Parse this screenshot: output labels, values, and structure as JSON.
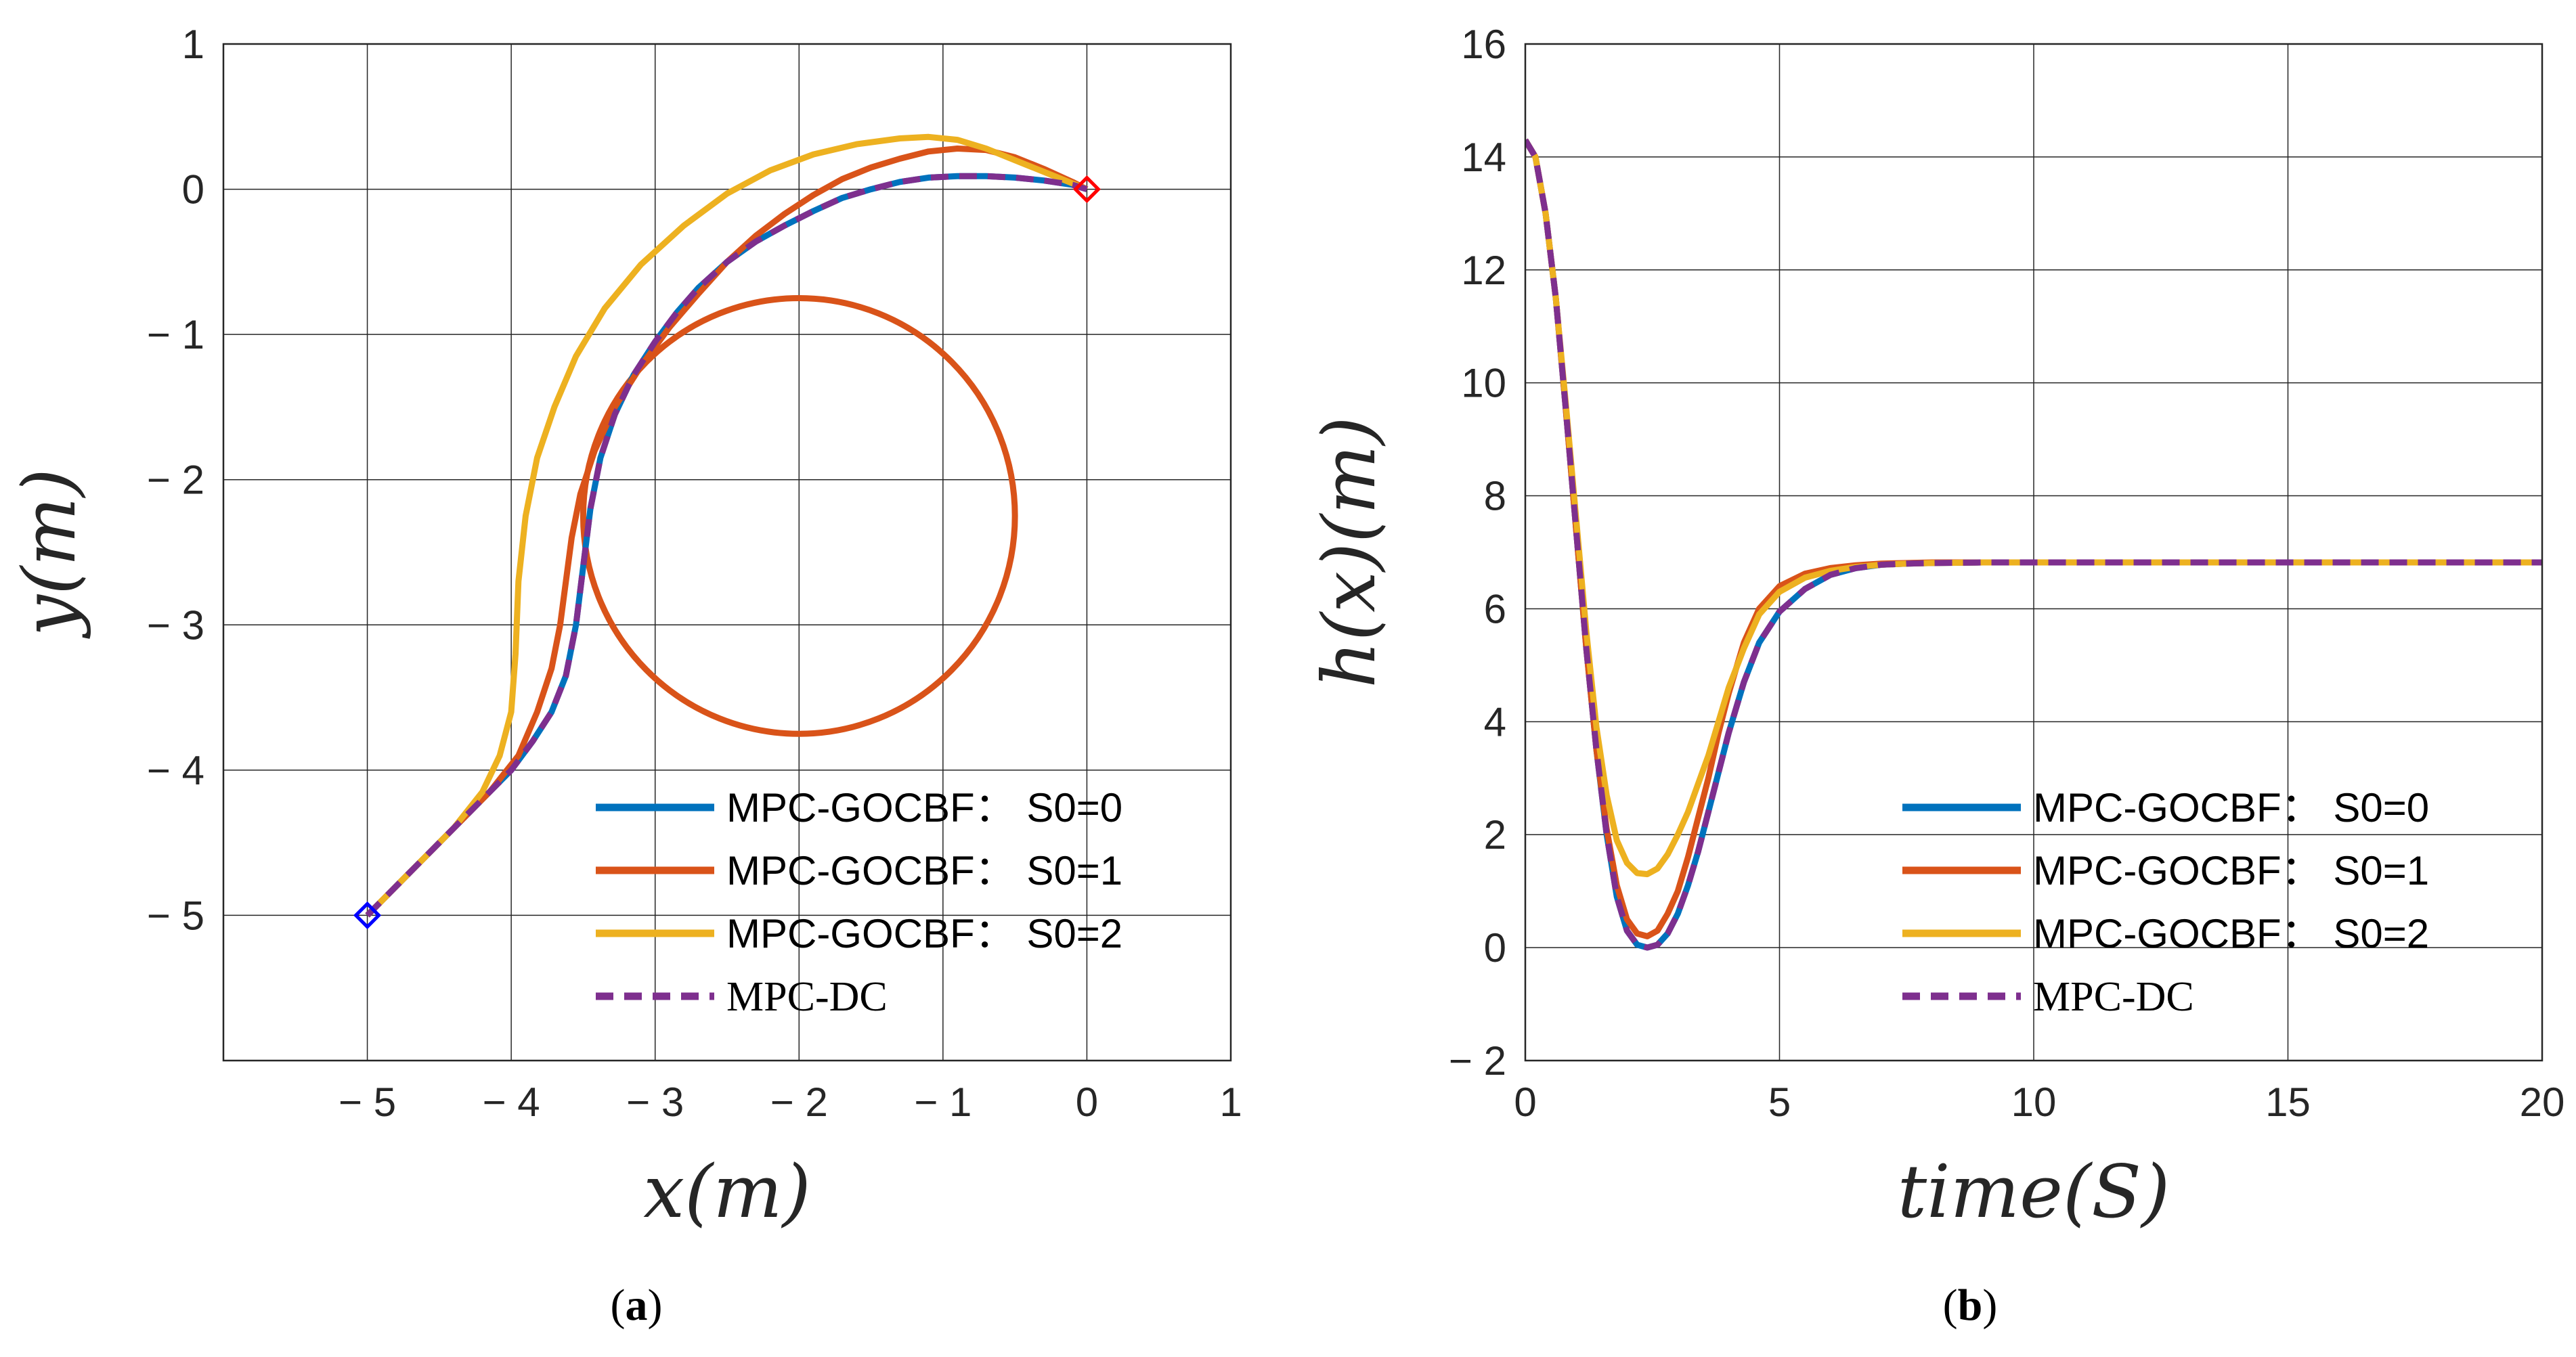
{
  "chart_data": [
    {
      "type": "line",
      "panel": "a",
      "caption_open": "(",
      "caption_letter": "a",
      "caption_close": ")",
      "xlabel": "x(m)",
      "ylabel": "y(m)",
      "xlim": [
        -6,
        1
      ],
      "ylim": [
        -6,
        1
      ],
      "xticks": [
        -5,
        -4,
        -3,
        -2,
        -1,
        0,
        1
      ],
      "yticks": [
        -5,
        -4,
        -3,
        -2,
        -1,
        0,
        1
      ],
      "xtick_labels": [
        "− 5",
        "− 4",
        "− 3",
        "− 2",
        "− 1",
        "0",
        "1"
      ],
      "ytick_labels": [
        "− 5",
        "− 4",
        "− 3",
        "− 2",
        "− 1",
        "0",
        "1"
      ],
      "grid": true,
      "legend_position": "lower-right",
      "obstacle": {
        "name": "obstacle",
        "center": [
          -2,
          -2.25
        ],
        "radius": 1.5,
        "color": "#D95319"
      },
      "markers": [
        {
          "name": "start-marker",
          "x": -5,
          "y": -5,
          "color": "#0000FF",
          "shape": "diamond"
        },
        {
          "name": "goal-marker",
          "x": 0,
          "y": 0,
          "color": "#FF0000",
          "shape": "diamond"
        }
      ],
      "series": [
        {
          "name": "MPC-GOCBF： S0=0",
          "color": "#0072BD",
          "style": "solid",
          "x": [
            -5,
            -4.7,
            -4.4,
            -4.15,
            -4.0,
            -3.85,
            -3.72,
            -3.62,
            -3.55,
            -3.5,
            -3.45,
            -3.38,
            -3.28,
            -3.15,
            -3.0,
            -2.85,
            -2.7,
            -2.5,
            -2.3,
            -2.1,
            -1.9,
            -1.7,
            -1.5,
            -1.3,
            -1.1,
            -0.9,
            -0.7,
            -0.5,
            -0.3,
            -0.1,
            0
          ],
          "y": [
            -5,
            -4.7,
            -4.4,
            -4.15,
            -4.0,
            -3.8,
            -3.6,
            -3.35,
            -3.0,
            -2.6,
            -2.2,
            -1.85,
            -1.55,
            -1.28,
            -1.05,
            -0.85,
            -0.68,
            -0.5,
            -0.36,
            -0.25,
            -0.15,
            -0.06,
            0.0,
            0.05,
            0.08,
            0.09,
            0.09,
            0.08,
            0.06,
            0.03,
            0
          ]
        },
        {
          "name": "MPC-GOCBF： S0=1",
          "color": "#D95319",
          "style": "solid",
          "x": [
            -5,
            -4.7,
            -4.4,
            -4.15,
            -3.95,
            -3.82,
            -3.72,
            -3.66,
            -3.62,
            -3.58,
            -3.52,
            -3.42,
            -3.28,
            -3.1,
            -2.9,
            -2.7,
            -2.5,
            -2.3,
            -2.1,
            -1.9,
            -1.7,
            -1.5,
            -1.3,
            -1.1,
            -0.9,
            -0.7,
            -0.5,
            -0.3,
            -0.1,
            0
          ],
          "y": [
            -5,
            -4.7,
            -4.4,
            -4.15,
            -3.9,
            -3.6,
            -3.3,
            -3.0,
            -2.7,
            -2.4,
            -2.1,
            -1.8,
            -1.5,
            -1.22,
            -0.95,
            -0.72,
            -0.5,
            -0.32,
            -0.17,
            -0.04,
            0.07,
            0.15,
            0.21,
            0.26,
            0.28,
            0.27,
            0.22,
            0.14,
            0.05,
            0
          ]
        },
        {
          "name": "MPC-GOCBF： S0=2",
          "color": "#EDB120",
          "style": "solid",
          "x": [
            -5,
            -4.7,
            -4.4,
            -4.2,
            -4.08,
            -4.0,
            -3.97,
            -3.95,
            -3.9,
            -3.82,
            -3.7,
            -3.55,
            -3.35,
            -3.1,
            -2.8,
            -2.5,
            -2.2,
            -1.9,
            -1.6,
            -1.3,
            -1.1,
            -0.9,
            -0.7,
            -0.5,
            -0.3,
            -0.1,
            0
          ],
          "y": [
            -5,
            -4.7,
            -4.4,
            -4.15,
            -3.9,
            -3.6,
            -3.2,
            -2.7,
            -2.25,
            -1.85,
            -1.5,
            -1.15,
            -0.82,
            -0.52,
            -0.25,
            -0.03,
            0.13,
            0.24,
            0.31,
            0.35,
            0.36,
            0.34,
            0.28,
            0.2,
            0.12,
            0.04,
            0
          ]
        },
        {
          "name": "MPC-DC",
          "color": "#7E2F8E",
          "style": "dashed",
          "x": [
            -5,
            -4.7,
            -4.4,
            -4.15,
            -4.0,
            -3.85,
            -3.72,
            -3.62,
            -3.55,
            -3.5,
            -3.45,
            -3.38,
            -3.28,
            -3.15,
            -3.0,
            -2.85,
            -2.7,
            -2.5,
            -2.3,
            -2.1,
            -1.9,
            -1.7,
            -1.5,
            -1.3,
            -1.1,
            -0.9,
            -0.7,
            -0.5,
            -0.3,
            -0.1,
            0
          ],
          "y": [
            -5,
            -4.7,
            -4.4,
            -4.15,
            -4.0,
            -3.8,
            -3.6,
            -3.35,
            -3.0,
            -2.6,
            -2.2,
            -1.85,
            -1.55,
            -1.28,
            -1.05,
            -0.85,
            -0.68,
            -0.5,
            -0.36,
            -0.25,
            -0.15,
            -0.06,
            0.0,
            0.05,
            0.08,
            0.09,
            0.09,
            0.08,
            0.06,
            0.03,
            0
          ]
        }
      ]
    },
    {
      "type": "line",
      "panel": "b",
      "caption_open": "(",
      "caption_letter": "b",
      "caption_close": ")",
      "xlabel": "time(S)",
      "ylabel": "h(x)(m)",
      "xlim": [
        0,
        20
      ],
      "ylim": [
        -2,
        16
      ],
      "xticks": [
        0,
        5,
        10,
        15,
        20
      ],
      "yticks": [
        -2,
        0,
        2,
        4,
        6,
        8,
        10,
        12,
        14,
        16
      ],
      "xtick_labels": [
        "0",
        "5",
        "10",
        "15",
        "20"
      ],
      "ytick_labels": [
        "− 2",
        "0",
        "2",
        "4",
        "6",
        "8",
        "10",
        "12",
        "14",
        "16"
      ],
      "grid": true,
      "legend_position": "lower-right",
      "series": [
        {
          "name": "MPC-GOCBF： S0=0",
          "color": "#0072BD",
          "style": "solid",
          "x": [
            0,
            0.2,
            0.4,
            0.6,
            0.8,
            1.0,
            1.2,
            1.4,
            1.6,
            1.8,
            2.0,
            2.2,
            2.4,
            2.6,
            2.8,
            3.0,
            3.2,
            3.4,
            3.6,
            3.8,
            4.0,
            4.3,
            4.6,
            5.0,
            5.5,
            6.0,
            6.5,
            7.0,
            7.5,
            8.0,
            9.0,
            10,
            12,
            15,
            20
          ],
          "y": [
            14.3,
            14.0,
            13.0,
            11.5,
            9.5,
            7.4,
            5.3,
            3.5,
            2.0,
            0.9,
            0.3,
            0.05,
            0.0,
            0.05,
            0.25,
            0.6,
            1.1,
            1.7,
            2.4,
            3.1,
            3.8,
            4.7,
            5.4,
            5.95,
            6.35,
            6.6,
            6.72,
            6.78,
            6.8,
            6.81,
            6.82,
            6.82,
            6.82,
            6.82,
            6.82
          ]
        },
        {
          "name": "MPC-GOCBF： S0=1",
          "color": "#D95319",
          "style": "solid",
          "x": [
            0,
            0.2,
            0.4,
            0.6,
            0.8,
            1.0,
            1.2,
            1.4,
            1.6,
            1.8,
            2.0,
            2.2,
            2.4,
            2.6,
            2.8,
            3.0,
            3.2,
            3.4,
            3.6,
            3.8,
            4.0,
            4.3,
            4.6,
            5.0,
            5.5,
            6.0,
            6.5,
            7.0,
            7.5,
            8.0,
            9.0,
            10,
            12,
            15,
            20
          ],
          "y": [
            14.3,
            14.0,
            13.0,
            11.5,
            9.5,
            7.4,
            5.3,
            3.5,
            2.1,
            1.1,
            0.5,
            0.25,
            0.2,
            0.3,
            0.6,
            1.0,
            1.6,
            2.3,
            3.0,
            3.8,
            4.5,
            5.4,
            6.0,
            6.4,
            6.62,
            6.72,
            6.77,
            6.8,
            6.81,
            6.82,
            6.82,
            6.82,
            6.82,
            6.82,
            6.82
          ]
        },
        {
          "name": "MPC-GOCBF： S0=2",
          "color": "#EDB120",
          "style": "solid",
          "x": [
            0,
            0.2,
            0.4,
            0.6,
            0.8,
            1.0,
            1.2,
            1.4,
            1.6,
            1.8,
            2.0,
            2.2,
            2.4,
            2.6,
            2.8,
            3.0,
            3.2,
            3.4,
            3.6,
            3.8,
            4.0,
            4.3,
            4.6,
            5.0,
            5.5,
            6.0,
            6.5,
            7.0,
            7.5,
            8.0,
            9.0,
            10,
            12,
            15,
            20
          ],
          "y": [
            14.3,
            14.0,
            13.0,
            11.5,
            9.6,
            7.6,
            5.6,
            3.9,
            2.7,
            1.9,
            1.5,
            1.32,
            1.3,
            1.4,
            1.65,
            2.0,
            2.4,
            2.9,
            3.4,
            4.0,
            4.6,
            5.3,
            5.9,
            6.3,
            6.55,
            6.67,
            6.74,
            6.78,
            6.8,
            6.81,
            6.82,
            6.82,
            6.82,
            6.82,
            6.82
          ]
        },
        {
          "name": "MPC-DC",
          "color": "#7E2F8E",
          "style": "dashed",
          "x": [
            0,
            0.2,
            0.4,
            0.6,
            0.8,
            1.0,
            1.2,
            1.4,
            1.6,
            1.8,
            2.0,
            2.2,
            2.4,
            2.6,
            2.8,
            3.0,
            3.2,
            3.4,
            3.6,
            3.8,
            4.0,
            4.3,
            4.6,
            5.0,
            5.5,
            6.0,
            6.5,
            7.0,
            7.5,
            8.0,
            9.0,
            10,
            12,
            15,
            20
          ],
          "y": [
            14.3,
            14.0,
            13.0,
            11.5,
            9.5,
            7.4,
            5.3,
            3.5,
            2.0,
            0.9,
            0.3,
            0.05,
            0.0,
            0.05,
            0.25,
            0.6,
            1.1,
            1.7,
            2.4,
            3.1,
            3.8,
            4.7,
            5.4,
            5.95,
            6.35,
            6.6,
            6.72,
            6.78,
            6.8,
            6.81,
            6.82,
            6.82,
            6.82,
            6.82,
            6.82
          ]
        }
      ]
    }
  ]
}
